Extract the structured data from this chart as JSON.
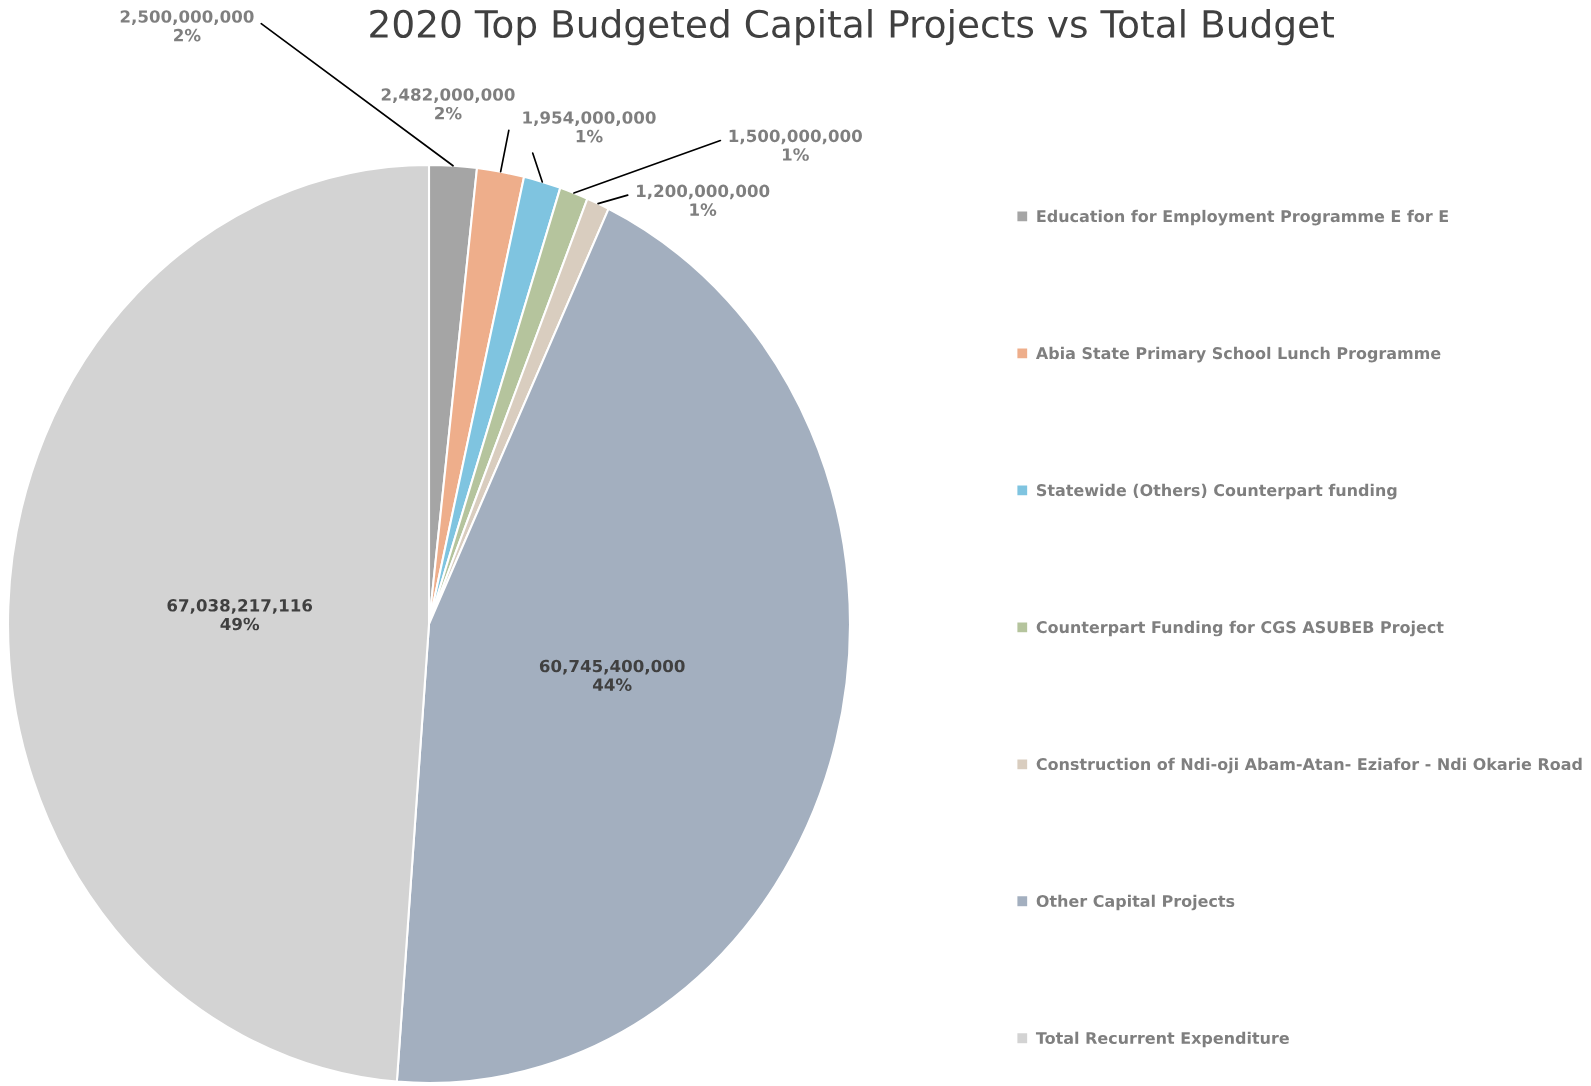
{
  "chart_data": {
    "type": "pie",
    "title": "2020 Top Budgeted Capital Projects vs Total Budget",
    "categories": [
      "Education for Employment Programme E for E",
      "Abia State Primary School Lunch Programme",
      "Statewide (Others) Counterpart funding",
      "Counterpart Funding for CGS ASUBEB Project",
      "Construction of Ndi-oji Abam-Atan- Eziafor - Ndi Okarie Road",
      "Other Capital Projects",
      "Total Recurrent Expenditure"
    ],
    "values": [
      2500000000,
      2482000000,
      1954000000,
      1500000000,
      1200000000,
      60745400000,
      67038217116
    ],
    "colors": [
      "#a5a5a5",
      "#eeae8b",
      "#7fc4e0",
      "#b5c49d",
      "#d9cdbf",
      "#a3afbf",
      "#d3d3d3"
    ],
    "value_labels": [
      "2,500,000,000\n2%",
      "2,482,000,000\n2%",
      "1,954,000,000\n1%",
      "1,500,000,000\n1%",
      "1,200,000,000\n1%",
      "60,745,400,000\n44%",
      "67,038,217,116\n49%"
    ],
    "legend": "right"
  }
}
